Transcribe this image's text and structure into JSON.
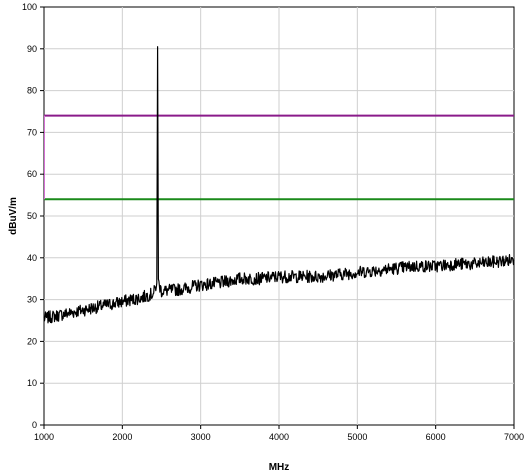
{
  "chart_data": {
    "type": "line",
    "title": "",
    "xlabel": "MHz",
    "ylabel": "dBuV/m",
    "xlim": [
      1000,
      7000
    ],
    "ylim": [
      0,
      100
    ],
    "x_ticks": [
      1000,
      2000,
      3000,
      4000,
      5000,
      6000,
      7000
    ],
    "y_ticks": [
      0,
      10,
      20,
      30,
      40,
      50,
      60,
      70,
      80,
      90,
      100
    ],
    "grid": true,
    "legend": "none",
    "limit_lines": [
      {
        "value": 74,
        "color": "#8a1a8a"
      },
      {
        "value": 54,
        "color": "#1a8a1a"
      }
    ],
    "series": [
      {
        "color": "#000000",
        "x": [
          1000,
          1250,
          1500,
          1750,
          2000,
          2250,
          2400,
          2440,
          2450,
          2460,
          2500,
          2750,
          3000,
          3250,
          3500,
          3750,
          4000,
          4250,
          4500,
          4750,
          5000,
          5250,
          5500,
          5750,
          6000,
          6250,
          6500,
          6750,
          7000
        ],
        "values": [
          25.5,
          26.5,
          27.5,
          28.5,
          29.5,
          30.5,
          31.5,
          34.0,
          90.5,
          34.0,
          32.0,
          32.5,
          33.5,
          34.0,
          35.0,
          35.0,
          35.5,
          35.5,
          35.5,
          36.0,
          36.5,
          37.0,
          37.5,
          38.0,
          38.0,
          38.5,
          38.5,
          39.0,
          39.5
        ]
      }
    ]
  }
}
